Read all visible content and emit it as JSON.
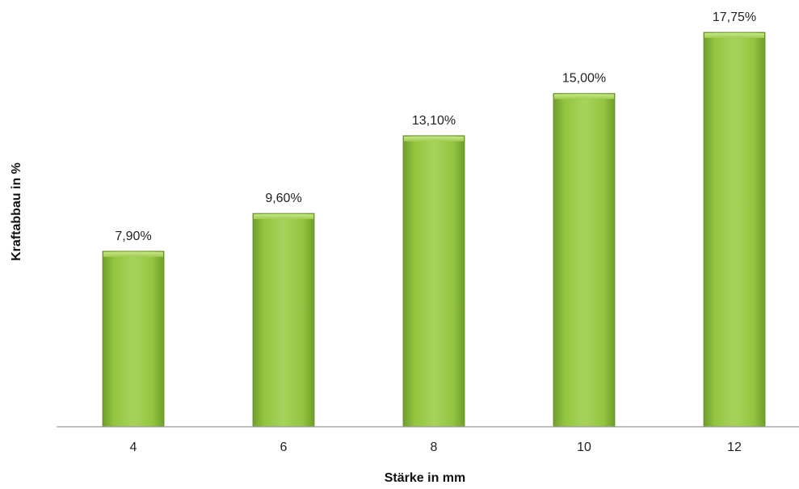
{
  "chart_data": {
    "type": "bar",
    "title": "",
    "xlabel": "Stärke in mm",
    "ylabel": "Kraftabbau in %",
    "categories": [
      "4",
      "6",
      "8",
      "10",
      "12"
    ],
    "values": [
      7.9,
      9.6,
      13.1,
      15.0,
      17.75
    ],
    "data_labels": [
      "7,90%",
      "9,60%",
      "13,10%",
      "15,00%",
      "17,75%"
    ],
    "ylim": [
      0,
      18.5
    ],
    "grid": false,
    "legend": "none",
    "colors": {
      "bar_top": "#a6d15a",
      "bar_mid": "#8fc03f",
      "bar_bottom": "#6a9a2a",
      "bar_edge": "#5f8d22",
      "axis": "#9a9a9a"
    }
  }
}
